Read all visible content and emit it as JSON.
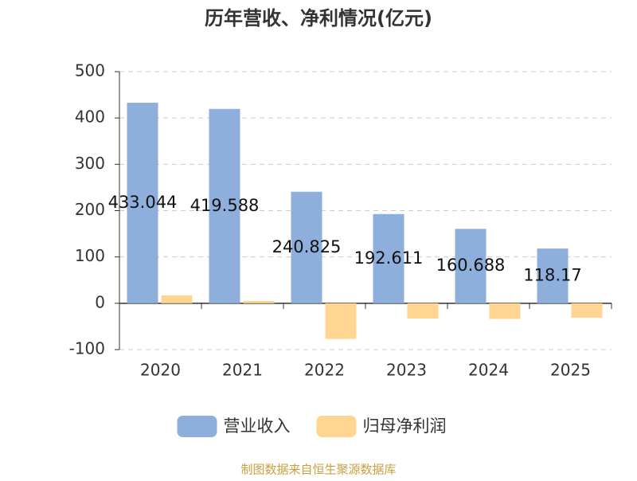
{
  "chart_data": {
    "type": "bar",
    "title": "历年营收、净利情况(亿元)",
    "categories": [
      "2020",
      "2021",
      "2022",
      "2023",
      "2024",
      "2025"
    ],
    "series": [
      {
        "name": "营业收入",
        "color": "#8eaedb",
        "values": [
          433.044,
          419.588,
          240.825,
          192.611,
          160.688,
          118.17
        ],
        "show_labels": true
      },
      {
        "name": "归母净利润",
        "color": "#ffd591",
        "values": [
          17,
          5,
          -77,
          -33,
          -34,
          -31
        ],
        "show_labels": false
      }
    ],
    "ylim": [
      -100,
      500
    ],
    "yticks": [
      -100,
      0,
      100,
      200,
      300,
      400,
      500
    ],
    "grid": true,
    "legend": "bottom",
    "source": "制图数据来自恒生聚源数据库"
  }
}
